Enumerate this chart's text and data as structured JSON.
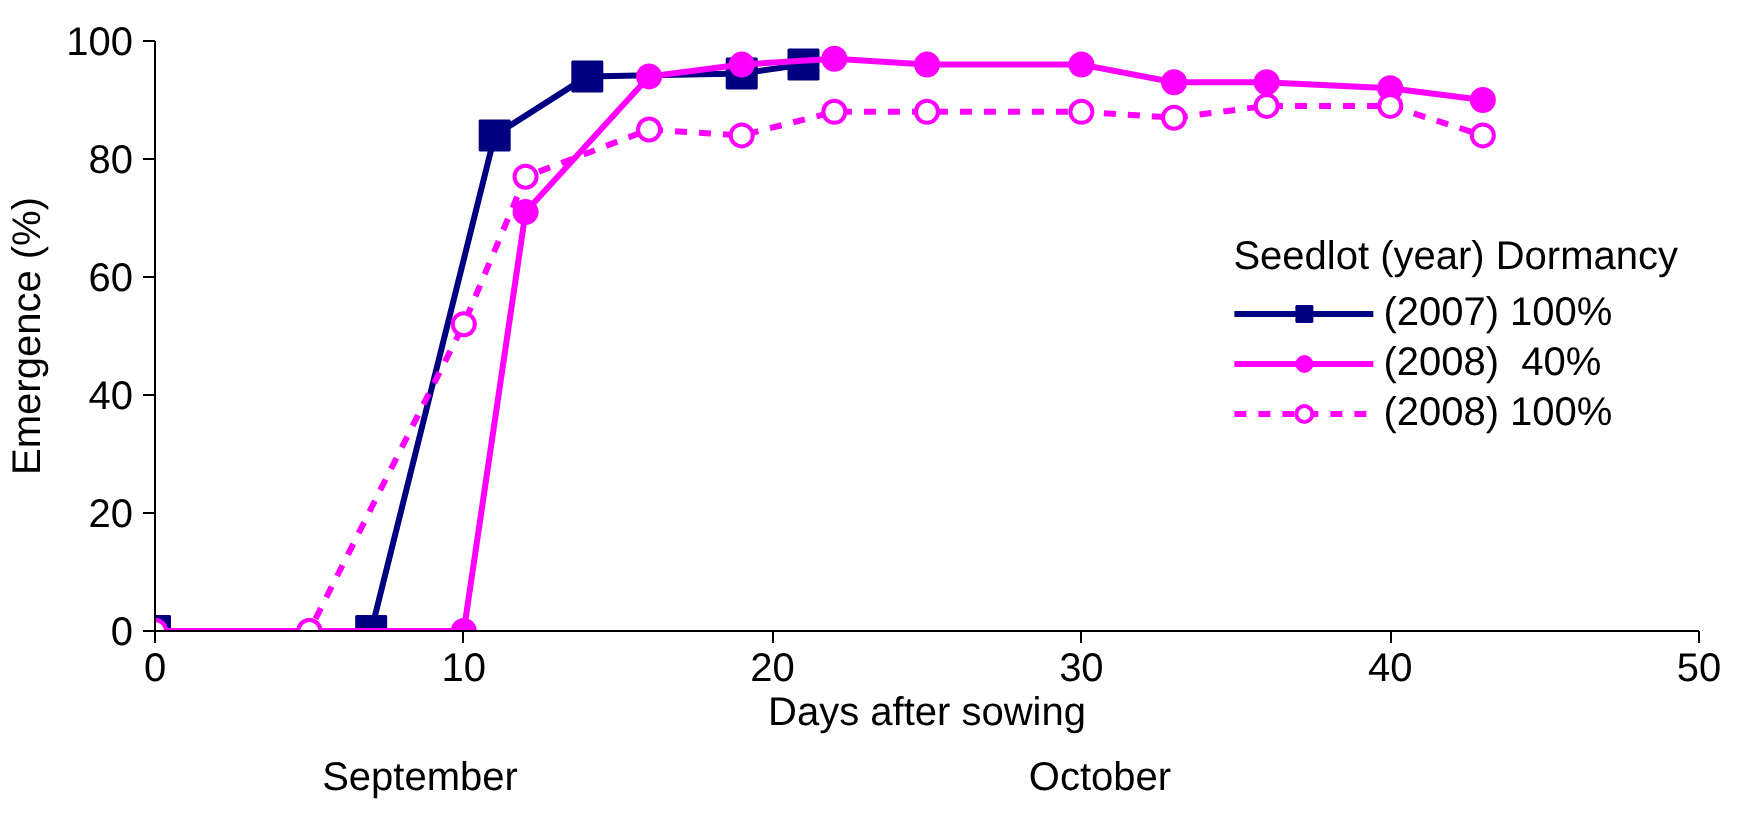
{
  "chart_data": {
    "type": "line",
    "xlabel": "Days after sowing",
    "ylabel": "Emergence (%)",
    "legend_title": "Seedlot (year) Dormancy",
    "xlim": [
      0,
      50
    ],
    "xticks": [
      0,
      10,
      20,
      30,
      40,
      50
    ],
    "ylim": [
      0,
      100
    ],
    "yticks": [
      0,
      20,
      40,
      60,
      80,
      100
    ],
    "grid": false,
    "legend": "right",
    "annotations": [
      "September",
      "October"
    ],
    "series": [
      {
        "name": "(2007) 100%",
        "color": "#000080",
        "marker": "square",
        "line_style": "solid",
        "x": [
          0,
          7,
          11,
          14,
          19,
          21
        ],
        "values": [
          0,
          0,
          84,
          94,
          94.5,
          96
        ]
      },
      {
        "name": "(2008)  40%",
        "color": "#ff00ff",
        "marker": "circle",
        "line_style": "solid",
        "x": [
          0,
          5,
          10,
          12,
          16,
          19,
          22,
          25,
          30,
          33,
          36,
          40,
          43
        ],
        "values": [
          0,
          0,
          0,
          71,
          94,
          96,
          97,
          96,
          96,
          93,
          93,
          92,
          90
        ]
      },
      {
        "name": "(2008) 100%",
        "color": "#ff00ff",
        "marker": "open_circle",
        "line_style": "dashed",
        "x": [
          0,
          5,
          10,
          12,
          16,
          19,
          22,
          25,
          30,
          33,
          36,
          40,
          43
        ],
        "values": [
          0,
          0,
          52,
          77,
          85,
          84,
          88,
          88,
          88,
          87,
          89,
          89,
          84
        ]
      }
    ]
  }
}
